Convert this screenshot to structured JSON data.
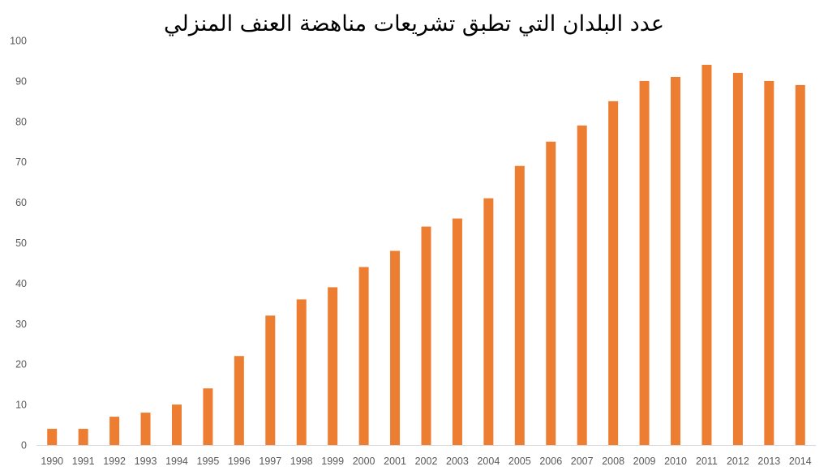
{
  "chart_data": {
    "type": "bar",
    "title": "عدد البلدان التي تطبق تشريعات مناهضة العنف المنزلي",
    "xlabel": "",
    "ylabel": "",
    "categories": [
      "1990",
      "1991",
      "1992",
      "1993",
      "1994",
      "1995",
      "1996",
      "1997",
      "1998",
      "1999",
      "2000",
      "2001",
      "2002",
      "2003",
      "2004",
      "2005",
      "2006",
      "2007",
      "2008",
      "2009",
      "2010",
      "2011",
      "2012",
      "2013",
      "2014"
    ],
    "values": [
      4,
      4,
      7,
      8,
      10,
      14,
      22,
      32,
      36,
      39,
      44,
      48,
      54,
      56,
      61,
      69,
      75,
      79,
      85,
      90,
      91,
      94,
      92,
      90,
      89
    ],
    "ylim": [
      0,
      100
    ],
    "yticks": [
      0,
      10,
      20,
      30,
      40,
      50,
      60,
      70,
      80,
      90,
      100
    ],
    "grid": false,
    "legend": "none",
    "bar_color": "#ED7D31"
  }
}
